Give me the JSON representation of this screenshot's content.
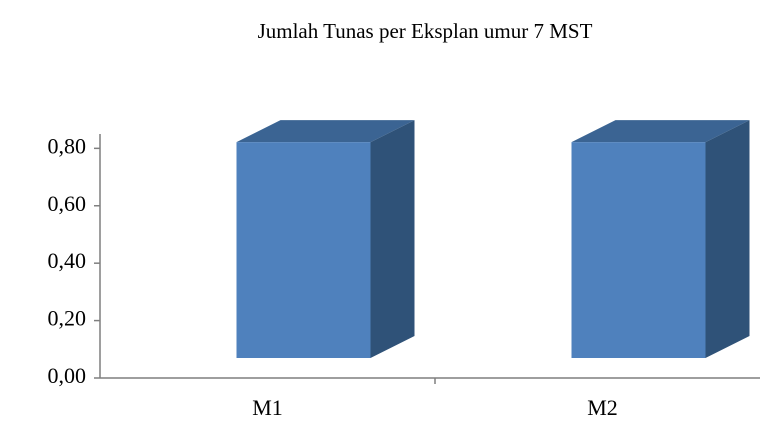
{
  "chart_data": {
    "type": "bar3d",
    "title": "Jumlah Tunas per Eksplan  umur  7 MST",
    "categories": [
      "M1",
      "M2"
    ],
    "values": [
      0.8,
      0.8
    ],
    "color": "#4f81bd",
    "ylim": [
      0,
      0.85
    ],
    "yticks": [
      {
        "value": 0,
        "label": "0,00"
      },
      {
        "value": 0.2,
        "label": "0,20"
      },
      {
        "value": 0.4,
        "label": "0,40"
      },
      {
        "value": 0.6,
        "label": "0,60"
      },
      {
        "value": 0.8,
        "label": "0,80"
      }
    ]
  }
}
